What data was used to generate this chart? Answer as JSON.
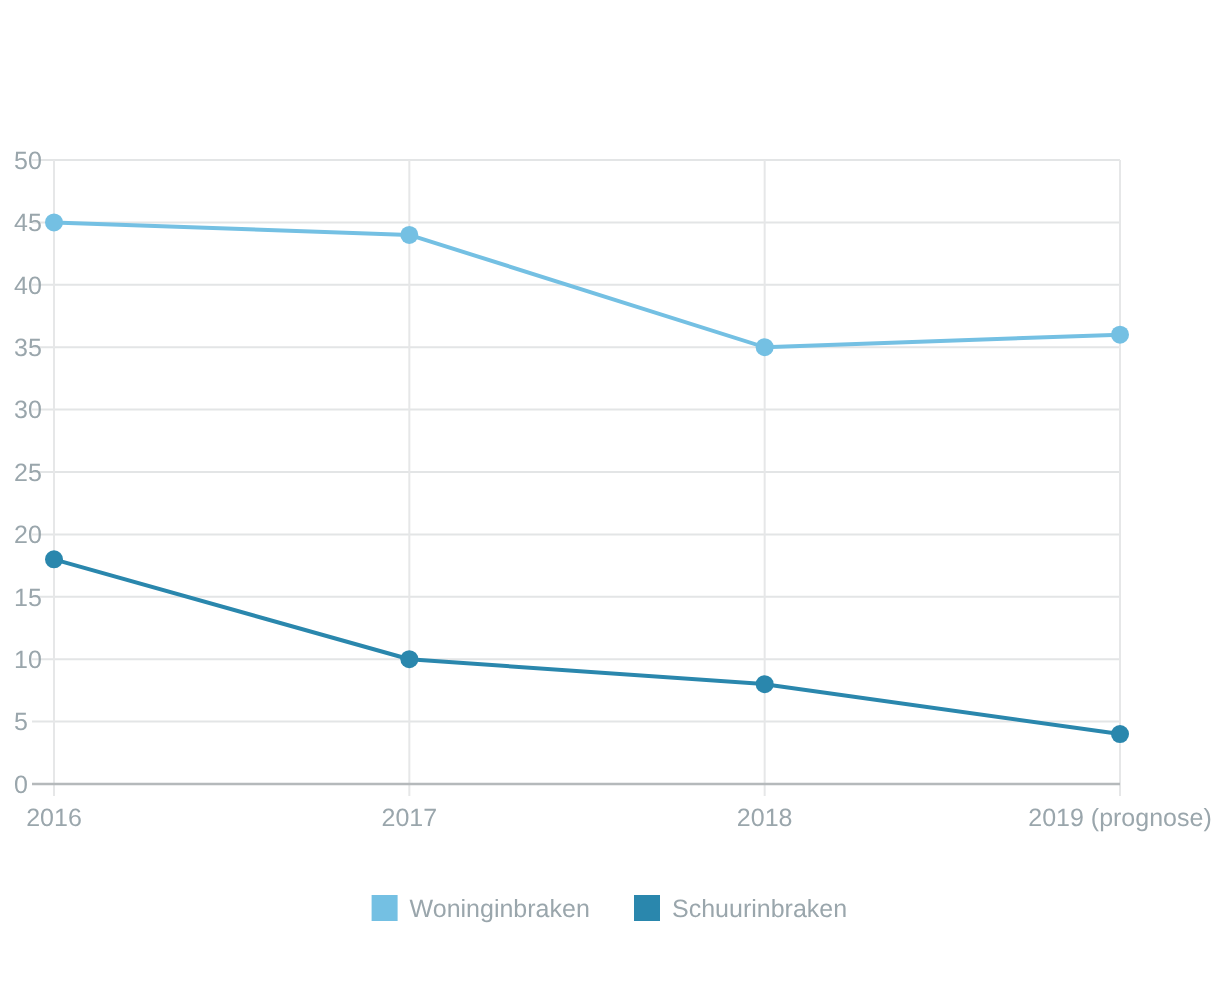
{
  "chart_data": {
    "type": "line",
    "categories": [
      "2016",
      "2017",
      "2018",
      "2019 (prognose)"
    ],
    "series": [
      {
        "name": "Woninginbraken",
        "color": "#74c0e3",
        "values": [
          45,
          44,
          35,
          36
        ]
      },
      {
        "name": "Schuurinbraken",
        "color": "#2a87ad",
        "values": [
          18,
          10,
          8,
          4
        ]
      }
    ],
    "ylim": [
      0,
      50
    ],
    "yticks": [
      0,
      5,
      10,
      15,
      20,
      25,
      30,
      35,
      40,
      45,
      50
    ],
    "grid": true,
    "legend": "bottom",
    "marker": "circle",
    "line_style": "solid"
  }
}
